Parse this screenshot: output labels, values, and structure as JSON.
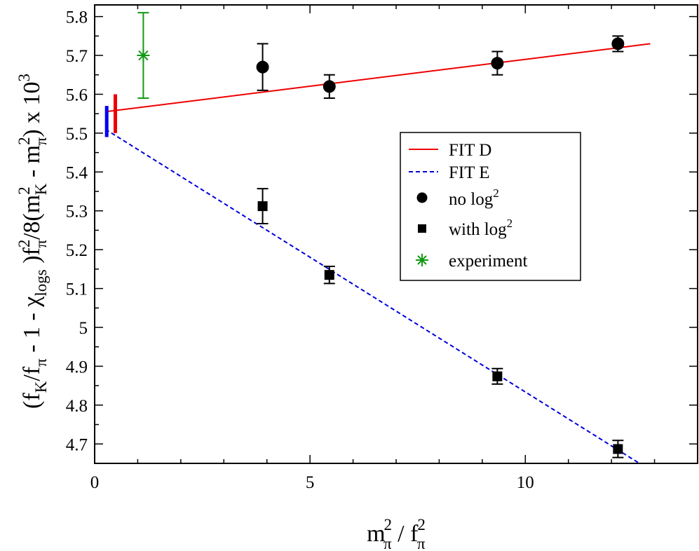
{
  "chart_data": {
    "type": "scatter",
    "title": "",
    "xlabel": {
      "main": "m",
      "main_sup": "2",
      "main_sub": "π",
      "sep": " / ",
      "den": "f",
      "den_sup": "2",
      "den_sub": "π"
    },
    "ylabel": {
      "p1": "(f",
      "p1_sub": "K",
      "p2": "/f",
      "p2_sub": "π",
      "p3": " - 1 - χ",
      "p3_sub": "logs",
      "p4": " )f",
      "p4_sup": "2",
      "p4_sub": "π",
      "p5": "/8(m",
      "p5_sup": "2",
      "p5_sub": "K",
      "p6": " - m",
      "p6_sup": "2",
      "p6_sub": "π",
      "p7": ")  x 10",
      "p7_sup": "3"
    },
    "xlim": [
      0,
      14
    ],
    "ylim": [
      4.65,
      5.83
    ],
    "x_ticks": [
      0,
      5,
      10
    ],
    "x_tick_labels": [
      "0",
      "5",
      "10"
    ],
    "y_ticks": [
      4.7,
      4.8,
      4.9,
      5.0,
      5.1,
      5.2,
      5.3,
      5.4,
      5.5,
      5.6,
      5.7,
      5.8
    ],
    "y_tick_labels": [
      "4.7",
      "4.8",
      "4.9",
      "5",
      "5.1",
      "5.2",
      "5.3",
      "5.4",
      "5.5",
      "5.6",
      "5.7",
      "5.8"
    ],
    "grid": false,
    "legend_position": "center-right",
    "fits": [
      {
        "name": "FIT D",
        "color": "#ee0000",
        "dash": "solid",
        "x": [
          0.25,
          12.9
        ],
        "y": [
          5.555,
          5.73
        ]
      },
      {
        "name": "FIT E",
        "color": "#0000dd",
        "dash": "dashed",
        "x": [
          0.25,
          12.65
        ],
        "y": [
          5.51,
          4.65
        ]
      }
    ],
    "series": [
      {
        "name": "no log",
        "name_sup": "2",
        "marker": "circle",
        "color": "#000000",
        "points": [
          {
            "x": 3.9,
            "y": 5.67,
            "err": 0.06
          },
          {
            "x": 5.45,
            "y": 5.62,
            "err": 0.03
          },
          {
            "x": 9.35,
            "y": 5.68,
            "err": 0.03
          },
          {
            "x": 12.15,
            "y": 5.73,
            "err": 0.02
          }
        ]
      },
      {
        "name": "with log",
        "name_sup": "2",
        "marker": "square",
        "color": "#000000",
        "points": [
          {
            "x": 3.9,
            "y": 5.312,
            "err": 0.045
          },
          {
            "x": 5.45,
            "y": 5.135,
            "err": 0.022
          },
          {
            "x": 9.35,
            "y": 4.874,
            "err": 0.02
          },
          {
            "x": 12.15,
            "y": 4.687,
            "err": 0.022
          }
        ]
      },
      {
        "name": "experiment",
        "name_sup": "",
        "marker": "star",
        "color": "#119911",
        "points": [
          {
            "x": 1.13,
            "y": 5.7,
            "err": 0.11
          }
        ]
      }
    ],
    "extrapolation_bars": [
      {
        "x": 0.28,
        "y_low": 5.49,
        "y_high": 5.57,
        "color": "#0000ee"
      },
      {
        "x": 0.48,
        "y_low": 5.5,
        "y_high": 5.6,
        "color": "#ee0000"
      }
    ]
  }
}
